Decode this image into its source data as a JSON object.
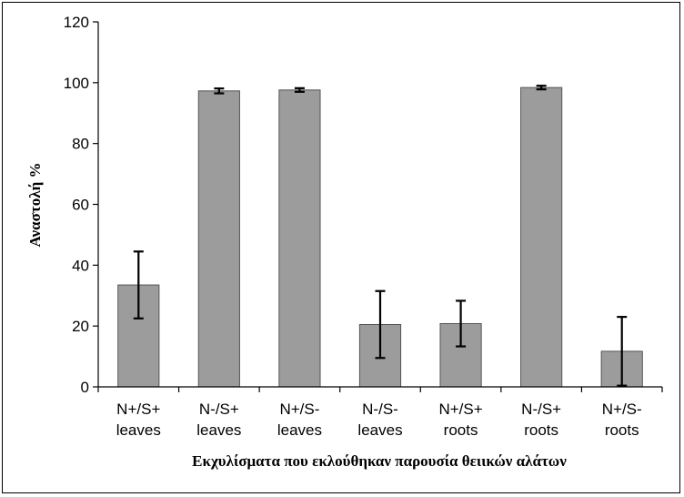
{
  "chart_data": {
    "type": "bar",
    "title": "",
    "xlabel": "Εκχυλίσματα που εκλούθηκαν παρουσία θειικών αλάτων",
    "ylabel": "Αναστολή %",
    "ylim": [
      0,
      120
    ],
    "yticks": [
      0,
      20,
      40,
      60,
      80,
      100,
      120
    ],
    "grid": false,
    "categories": [
      [
        "N+/S+",
        "leaves"
      ],
      [
        "N-/S+",
        "leaves"
      ],
      [
        "N+/S-",
        "leaves"
      ],
      [
        "N-/S-",
        "leaves"
      ],
      [
        "N+/S+",
        "roots"
      ],
      [
        "N-/S+",
        "roots"
      ],
      [
        "N+/S-",
        "roots"
      ]
    ],
    "values": [
      33.5,
      97.3,
      97.6,
      20.5,
      20.8,
      98.4,
      11.7
    ],
    "errors": [
      11,
      0.8,
      0.6,
      11,
      7.5,
      0.6,
      11.3
    ],
    "colors": {
      "bar": "#9c9c9c",
      "bar_stroke": "#555555",
      "axis": "#000000"
    }
  }
}
